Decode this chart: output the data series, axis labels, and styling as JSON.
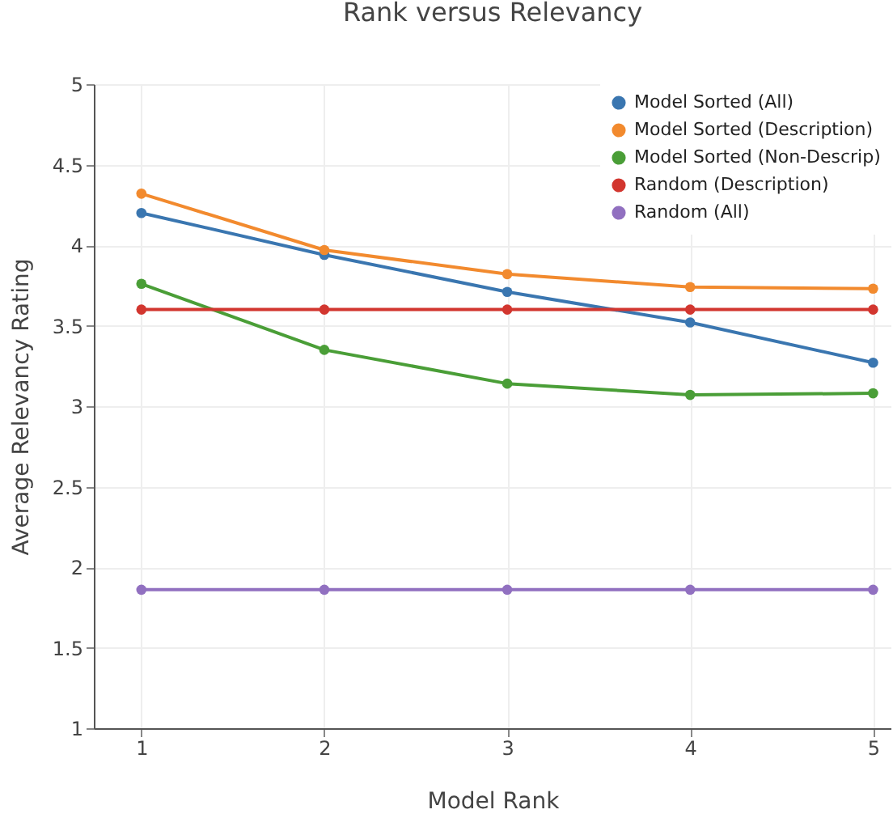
{
  "chart_data": {
    "type": "line",
    "title": "Rank versus Relevancy",
    "xlabel": "Model Rank",
    "ylabel": "Average Relevancy Rating",
    "x": [
      1,
      2,
      3,
      4,
      5
    ],
    "series": [
      {
        "name": "Model Sorted (All)",
        "color": "#3a76b0",
        "values": [
          4.2,
          3.94,
          3.71,
          3.52,
          3.27
        ]
      },
      {
        "name": "Model Sorted (Description)",
        "color": "#f28a2e",
        "values": [
          4.32,
          3.97,
          3.82,
          3.74,
          3.73
        ]
      },
      {
        "name": "Model Sorted (Non-Descrip)",
        "color": "#4a9e37",
        "values": [
          3.76,
          3.35,
          3.14,
          3.07,
          3.08
        ]
      },
      {
        "name": "Random (Description)",
        "color": "#d2362f",
        "values": [
          3.6,
          3.6,
          3.6,
          3.6,
          3.6
        ]
      },
      {
        "name": "Random (All)",
        "color": "#9170c0",
        "values": [
          1.86,
          1.86,
          1.86,
          1.86,
          1.86
        ]
      }
    ],
    "xlim": [
      0.74,
      5.1
    ],
    "xticks": [
      1,
      2,
      3,
      4,
      5
    ],
    "ylim": [
      1,
      5
    ],
    "yticks": [
      1,
      1.5,
      2,
      2.5,
      3,
      3.5,
      4,
      4.5,
      5
    ],
    "grid": true,
    "legend": "top right",
    "marker": "circle",
    "line_style": "solid"
  }
}
